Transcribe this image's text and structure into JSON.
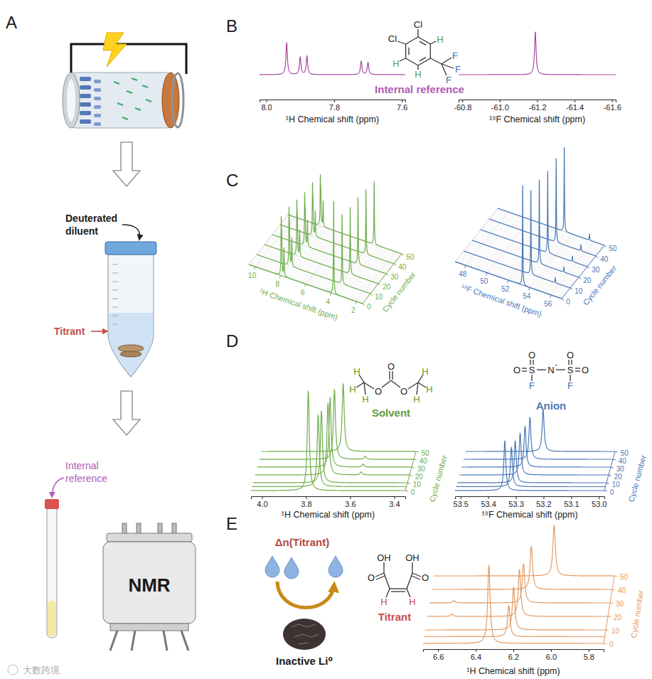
{
  "panel_labels": [
    "A",
    "B",
    "C",
    "D",
    "E"
  ],
  "workflow": {
    "diluent_label": [
      "Deuterated",
      "diluent"
    ],
    "titrant_label": "Titrant",
    "reference_label": [
      "Internal",
      "reference"
    ],
    "instrument_label": "NMR"
  },
  "structures": {
    "reference": {
      "atoms": [
        "Cl",
        "Cl",
        "H",
        "H",
        "H",
        "F",
        "F",
        "F"
      ],
      "caption": "Internal reference"
    },
    "solvent": {
      "atoms": [
        "O",
        "O",
        "O",
        "H",
        "H",
        "H",
        "H",
        "H",
        "H"
      ],
      "caption": "Solvent"
    },
    "anion": {
      "atoms": [
        "O",
        "O",
        "S",
        "N",
        "S",
        "O",
        "O",
        "F",
        "F"
      ],
      "charge": "-",
      "caption": "Anion"
    },
    "titrant": {
      "atoms": [
        "OH",
        "O",
        "OH",
        "O",
        "H",
        "H"
      ],
      "caption": "Titrant"
    }
  },
  "titration": {
    "label": "Δn(Titrant)",
    "lithium_label": "Inactive Li⁰"
  },
  "watermark": "大数跨境",
  "chart_data": [
    {
      "type": "spectrum",
      "x_label": "¹H Chemical shift (ppm)",
      "xlim": [
        8.02,
        7.59
      ],
      "xticks": [
        {
          "value": 8,
          "label": "8.0"
        },
        7.8,
        7.6
      ],
      "color": "#a8479f",
      "series": [
        {
          "x": [
            7.94,
            7.9,
            7.88,
            7.72,
            7.7
          ],
          "values": [
            1.0,
            0.55,
            0.58,
            0.42,
            0.38
          ]
        }
      ]
    },
    {
      "type": "spectrum",
      "x_label": "¹⁹F Chemical shift (ppm)",
      "xlim": [
        -60.78,
        -61.62
      ],
      "xticks": [
        -60.8,
        {
          "value": -61,
          "label": "-61.0"
        },
        -61.2,
        -61.4,
        -61.6
      ],
      "color": "#a8479f",
      "series": [
        {
          "x": [
            -61.19
          ],
          "values": [
            1.0
          ]
        }
      ]
    },
    {
      "type": "waterfall3d",
      "x_label": "¹H Chemical shift (ppm)",
      "xlim": [
        10.5,
        1.5
      ],
      "xticks": [
        10,
        8,
        6,
        4,
        2
      ],
      "z_label": "Cycle number",
      "zlim": [
        0,
        50
      ],
      "zticks": [
        0,
        10,
        20,
        30,
        40,
        50
      ],
      "grid": true,
      "color": "#6fae4b",
      "series": [
        {
          "cycle": 0,
          "x": [
            7.94,
            7.9,
            7.72,
            3.79
          ],
          "values": [
            0.55,
            0.35,
            0.3,
            1.0
          ]
        },
        {
          "cycle": 10,
          "x": [
            7.94,
            7.9,
            7.72,
            3.74
          ],
          "values": [
            0.55,
            0.33,
            0.3,
            0.75
          ]
        },
        {
          "cycle": 20,
          "x": [
            7.94,
            7.9,
            7.72,
            3.72
          ],
          "values": [
            0.52,
            0.33,
            0.28,
            0.72
          ]
        },
        {
          "cycle": 30,
          "x": [
            7.94,
            7.9,
            7.72,
            3.72
          ],
          "values": [
            0.5,
            0.3,
            0.28,
            0.72
          ]
        },
        {
          "cycle": 40,
          "x": [
            7.94,
            7.9,
            7.72,
            3.71
          ],
          "values": [
            0.5,
            0.3,
            0.27,
            0.7
          ]
        },
        {
          "cycle": 50,
          "x": [
            7.94,
            7.9,
            7.72,
            3.68
          ],
          "values": [
            0.48,
            0.3,
            0.27,
            0.68
          ]
        }
      ]
    },
    {
      "type": "waterfall3d",
      "x_label": "¹⁹F Chemical shift (ppm)",
      "xlim": [
        47,
        57
      ],
      "xticks": [
        48,
        50,
        52,
        54,
        56
      ],
      "z_label": "Cycle number",
      "zlim": [
        0,
        50
      ],
      "zticks": [
        0,
        10,
        20,
        30,
        40,
        50
      ],
      "grid": true,
      "color": "#4a78b8",
      "series": [
        {
          "cycle": 0,
          "x": [
            53.34
          ],
          "values": [
            0.95
          ]
        },
        {
          "cycle": 10,
          "x": [
            53.31,
            55.6
          ],
          "values": [
            0.8,
            0.05
          ]
        },
        {
          "cycle": 20,
          "x": [
            53.3,
            55.6
          ],
          "values": [
            0.8,
            0.05
          ]
        },
        {
          "cycle": 30,
          "x": [
            53.29,
            55.6
          ],
          "values": [
            0.78,
            0.05
          ]
        },
        {
          "cycle": 40,
          "x": [
            53.28,
            55.6
          ],
          "values": [
            0.8,
            0.06
          ]
        },
        {
          "cycle": 50,
          "x": [
            53.24,
            55.6
          ],
          "values": [
            0.8,
            0.06
          ]
        }
      ]
    },
    {
      "type": "waterfall",
      "x_label": "¹H Chemical shift (ppm)",
      "xlim": [
        4.05,
        3.35
      ],
      "xticks": [
        {
          "value": 4,
          "label": "4.0"
        },
        3.8,
        3.6,
        3.4
      ],
      "z_label": "Cycle number",
      "zlim": [
        0,
        50
      ],
      "zticks": [
        0,
        10,
        20,
        30,
        40,
        50
      ],
      "color": "#6fae4b",
      "series": [
        {
          "cycle": 0,
          "x": [
            3.79
          ],
          "values": [
            1.0
          ]
        },
        {
          "cycle": 5,
          "x": [
            3.75
          ],
          "values": [
            0.72
          ]
        },
        {
          "cycle": 10,
          "x": [
            3.74
          ],
          "values": [
            0.72
          ]
        },
        {
          "cycle": 20,
          "x": [
            3.72,
            3.57
          ],
          "values": [
            0.72,
            0.03
          ]
        },
        {
          "cycle": 30,
          "x": [
            3.72,
            3.57
          ],
          "values": [
            0.7,
            0.03
          ]
        },
        {
          "cycle": 40,
          "x": [
            3.71,
            3.57
          ],
          "values": [
            0.7,
            0.03
          ]
        },
        {
          "cycle": 50,
          "x": [
            3.68
          ],
          "values": [
            0.68
          ]
        }
      ]
    },
    {
      "type": "waterfall",
      "x_label": "¹⁹F Chemical shift (ppm)",
      "xlim": [
        53.52,
        52.98
      ],
      "xticks": [
        53.5,
        53.4,
        53.3,
        53.2,
        53.1,
        {
          "value": 53,
          "label": "53.0"
        }
      ],
      "z_label": "Cycle number",
      "zlim": [
        0,
        50
      ],
      "zticks": [
        0,
        10,
        20,
        30,
        40,
        50
      ],
      "color": "#4a78b8",
      "series": [
        {
          "cycle": 0,
          "x": [
            53.34
          ],
          "values": [
            0.95
          ]
        },
        {
          "cycle": 5,
          "x": [
            53.32
          ],
          "values": [
            0.75
          ]
        },
        {
          "cycle": 10,
          "x": [
            53.31
          ],
          "values": [
            0.8
          ]
        },
        {
          "cycle": 20,
          "x": [
            53.3
          ],
          "values": [
            0.8
          ]
        },
        {
          "cycle": 30,
          "x": [
            53.29
          ],
          "values": [
            0.78
          ]
        },
        {
          "cycle": 40,
          "x": [
            53.28
          ],
          "values": [
            0.8
          ]
        },
        {
          "cycle": 50,
          "x": [
            53.24
          ],
          "values": [
            0.8
          ]
        }
      ]
    },
    {
      "type": "waterfall",
      "x_label": "¹H Chemical shift (ppm)",
      "xlim": [
        6.68,
        5.72
      ],
      "xticks": [
        6.6,
        6.4,
        6.2,
        {
          "value": 6,
          "label": "6.0"
        },
        5.8
      ],
      "z_label": "Cycle number",
      "zlim": [
        0,
        50
      ],
      "zticks": [
        0,
        10,
        20,
        30,
        40,
        50
      ],
      "color": "#e39a62",
      "series": [
        {
          "cycle": 0,
          "x": [
            6.33
          ],
          "values": [
            1.0
          ]
        },
        {
          "cycle": 5,
          "x": [
            6.23
          ],
          "values": [
            0.4
          ]
        },
        {
          "cycle": 10,
          "x": [
            6.21
          ],
          "values": [
            0.55
          ]
        },
        {
          "cycle": 20,
          "x": [
            6.19,
            6.55
          ],
          "values": [
            0.6,
            0.03
          ]
        },
        {
          "cycle": 30,
          "x": [
            6.18,
            6.55
          ],
          "values": [
            0.5,
            0.03
          ]
        },
        {
          "cycle": 40,
          "x": [
            6.15
          ],
          "values": [
            0.55
          ]
        },
        {
          "cycle": 50,
          "x": [
            6.04
          ],
          "values": [
            0.65
          ]
        }
      ]
    }
  ]
}
